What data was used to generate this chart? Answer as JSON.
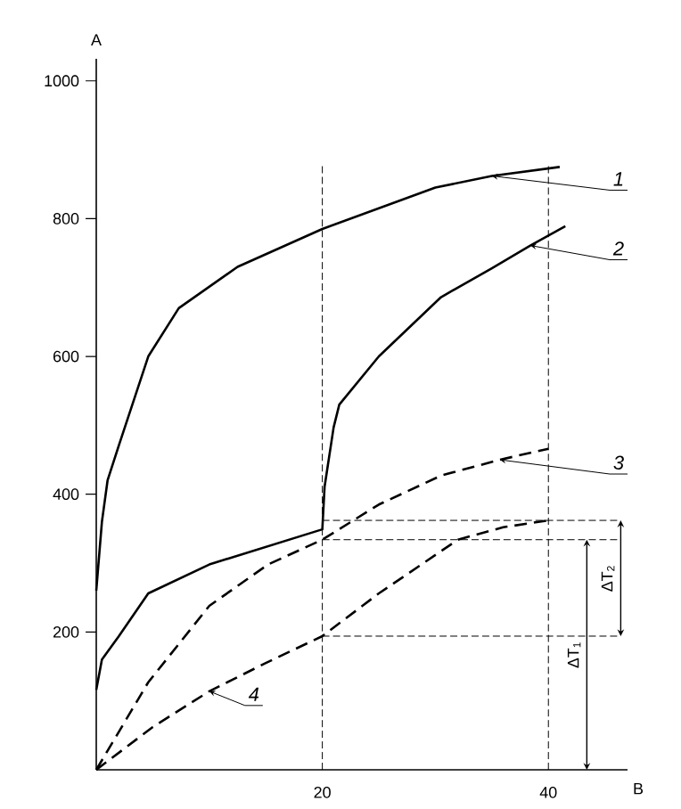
{
  "chart_data": {
    "type": "line",
    "xlabel": "B",
    "ylabel": "A",
    "xlim": [
      0,
      47
    ],
    "ylim": [
      0,
      1032
    ],
    "xticks": [
      20,
      40
    ],
    "yticks": [
      200,
      400,
      600,
      800,
      1000
    ],
    "series": [
      {
        "name": "1",
        "color": "#000000",
        "line_style": "solid",
        "x": [
          0,
          0.5,
          1,
          2,
          4.6,
          7.3,
          12.5,
          20,
          25,
          30,
          35,
          41
        ],
        "values": [
          260,
          360,
          420,
          471,
          600,
          670,
          730,
          785,
          815,
          845,
          862,
          875
        ]
      },
      {
        "name": "2",
        "color": "#000000",
        "line_style": "solid",
        "x": [
          0,
          0.5,
          2,
          4.6,
          10,
          20,
          20.2,
          21,
          21.5,
          25,
          30.5,
          35,
          38.4,
          41.5
        ],
        "values": [
          116,
          160,
          194,
          256,
          298,
          349,
          411,
          497,
          530,
          600,
          686,
          728,
          761,
          789
        ]
      },
      {
        "name": "3",
        "color": "#000000",
        "line_style": "dashed",
        "x": [
          0,
          4.6,
          10,
          15.2,
          20,
          25,
          30.5,
          35.7,
          40
        ],
        "values": [
          0,
          127,
          238,
          298,
          334,
          385,
          427,
          450,
          466
        ]
      },
      {
        "name": "4",
        "color": "#000000",
        "line_style": "dashed",
        "x": [
          0,
          5,
          10,
          15,
          20,
          25,
          32,
          36,
          40
        ],
        "values": [
          0,
          62,
          114,
          155,
          194,
          256,
          334,
          352,
          362
        ]
      }
    ],
    "ref_lines": [
      {
        "axis": "x",
        "value": 20,
        "line_style": "dashed"
      },
      {
        "axis": "x",
        "value": 40,
        "line_style": "dashed"
      },
      {
        "axis": "y",
        "value": 334,
        "line_style": "dashed"
      },
      {
        "axis": "y",
        "value": 194,
        "line_style": "dashed"
      },
      {
        "axis": "y",
        "value": 362,
        "line_style": "dashed"
      }
    ],
    "annotations": [
      "ΔT$_{1}$",
      "ΔT$_{2}$"
    ]
  }
}
